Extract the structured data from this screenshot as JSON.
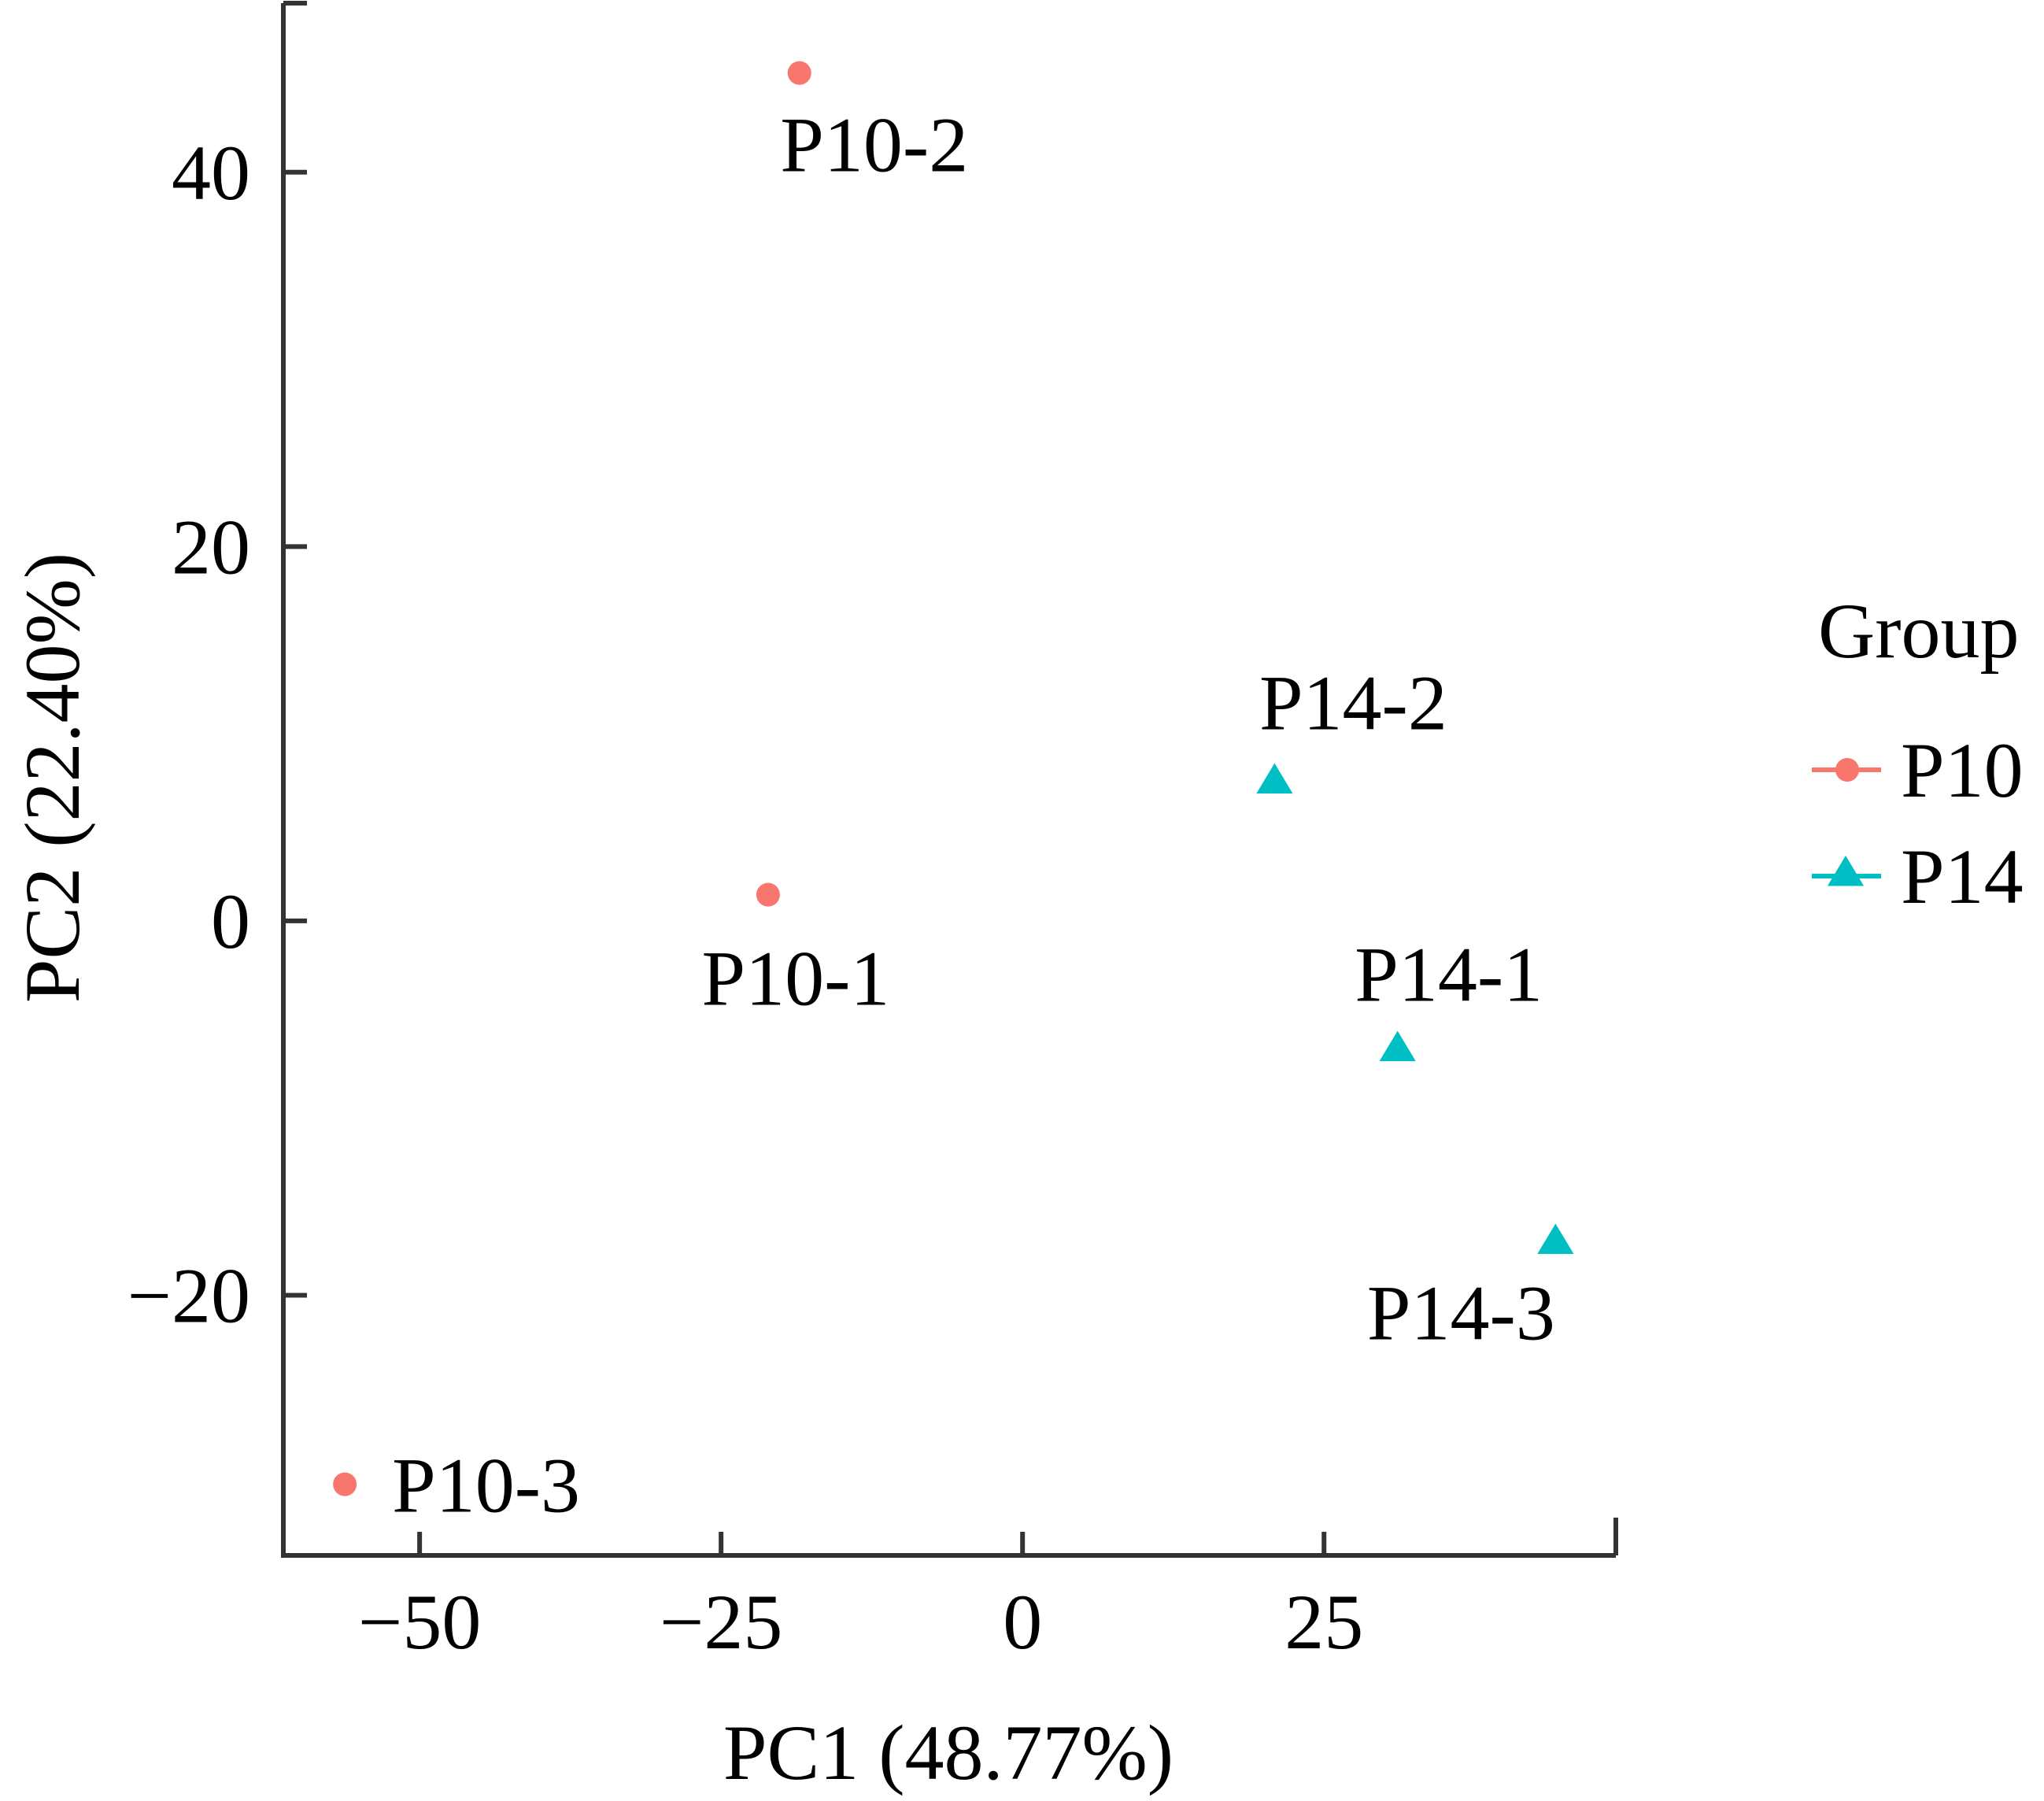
{
  "chart_data": {
    "type": "scatter",
    "title": "",
    "xlabel": "PC1 (48.77%)",
    "ylabel": "PC2 (22.40%)",
    "xlim": [
      -61.3,
      49.2
    ],
    "ylim": [
      -33.9,
      49.2
    ],
    "xticks": [
      -50,
      -25,
      0,
      25
    ],
    "xtick_labels": [
      "−50",
      "−25",
      "0",
      "25"
    ],
    "yticks": [
      -20,
      0,
      20,
      40
    ],
    "ytick_labels": [
      "−20",
      "0",
      "20",
      "40"
    ],
    "grid": false,
    "legend": {
      "title": "Group",
      "position": "right"
    },
    "series": [
      {
        "name": "P10",
        "color": "#F8766D",
        "marker": "circle",
        "points": [
          {
            "label": "P10-1",
            "x": -21.1,
            "y": 1.4
          },
          {
            "label": "P10-2",
            "x": -18.5,
            "y": 45.3
          },
          {
            "label": "P10-3",
            "x": -56.2,
            "y": -30.1
          }
        ]
      },
      {
        "name": "P14",
        "color": "#00BFC4",
        "marker": "triangle",
        "points": [
          {
            "label": "P14-1",
            "x": 31.1,
            "y": -6.8
          },
          {
            "label": "P14-2",
            "x": 20.9,
            "y": 7.5
          },
          {
            "label": "P14-3",
            "x": 44.2,
            "y": -17.1
          }
        ]
      }
    ]
  }
}
